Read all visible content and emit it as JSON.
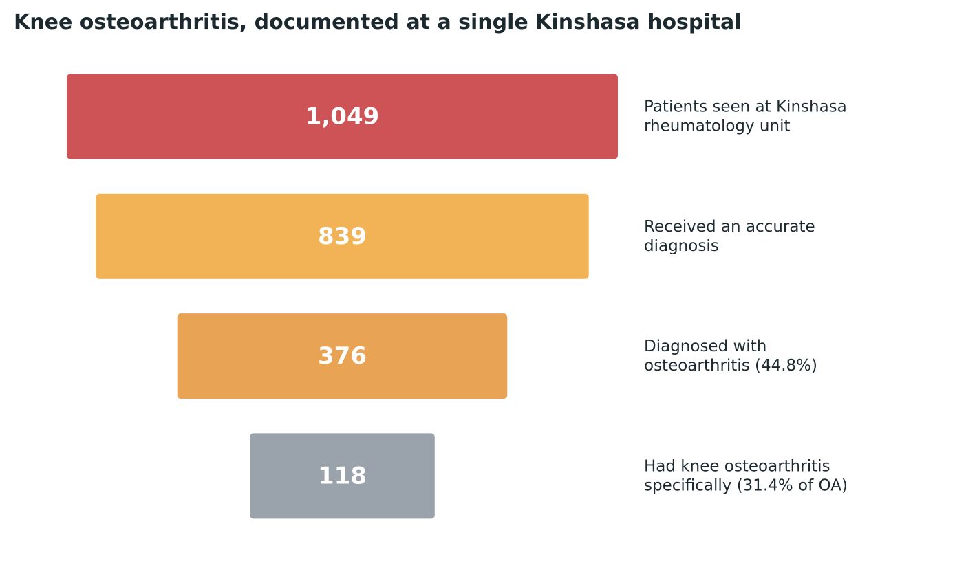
{
  "chart_data": {
    "type": "bar",
    "subtype": "funnel",
    "title": "Knee osteoarthritis, documented at a single Kinshasa hospital",
    "stages": [
      {
        "value": 1049,
        "value_label": "1,049",
        "label_lines": [
          "Patients seen at Kinshasa",
          "rheumatology unit"
        ],
        "color": "#cd5356"
      },
      {
        "value": 839,
        "value_label": "839",
        "label_lines": [
          "Received an accurate",
          "diagnosis"
        ],
        "color": "#f2b356"
      },
      {
        "value": 376,
        "value_label": "376",
        "label_lines": [
          "Diagnosed with",
          "osteoarthritis (44.8%)"
        ],
        "color": "#e8a354"
      },
      {
        "value": 118,
        "value_label": "118",
        "label_lines": [
          "Had knee osteoarthritis",
          "specifically (31.4% of OA)"
        ],
        "color": "#9aa3ab"
      }
    ]
  }
}
